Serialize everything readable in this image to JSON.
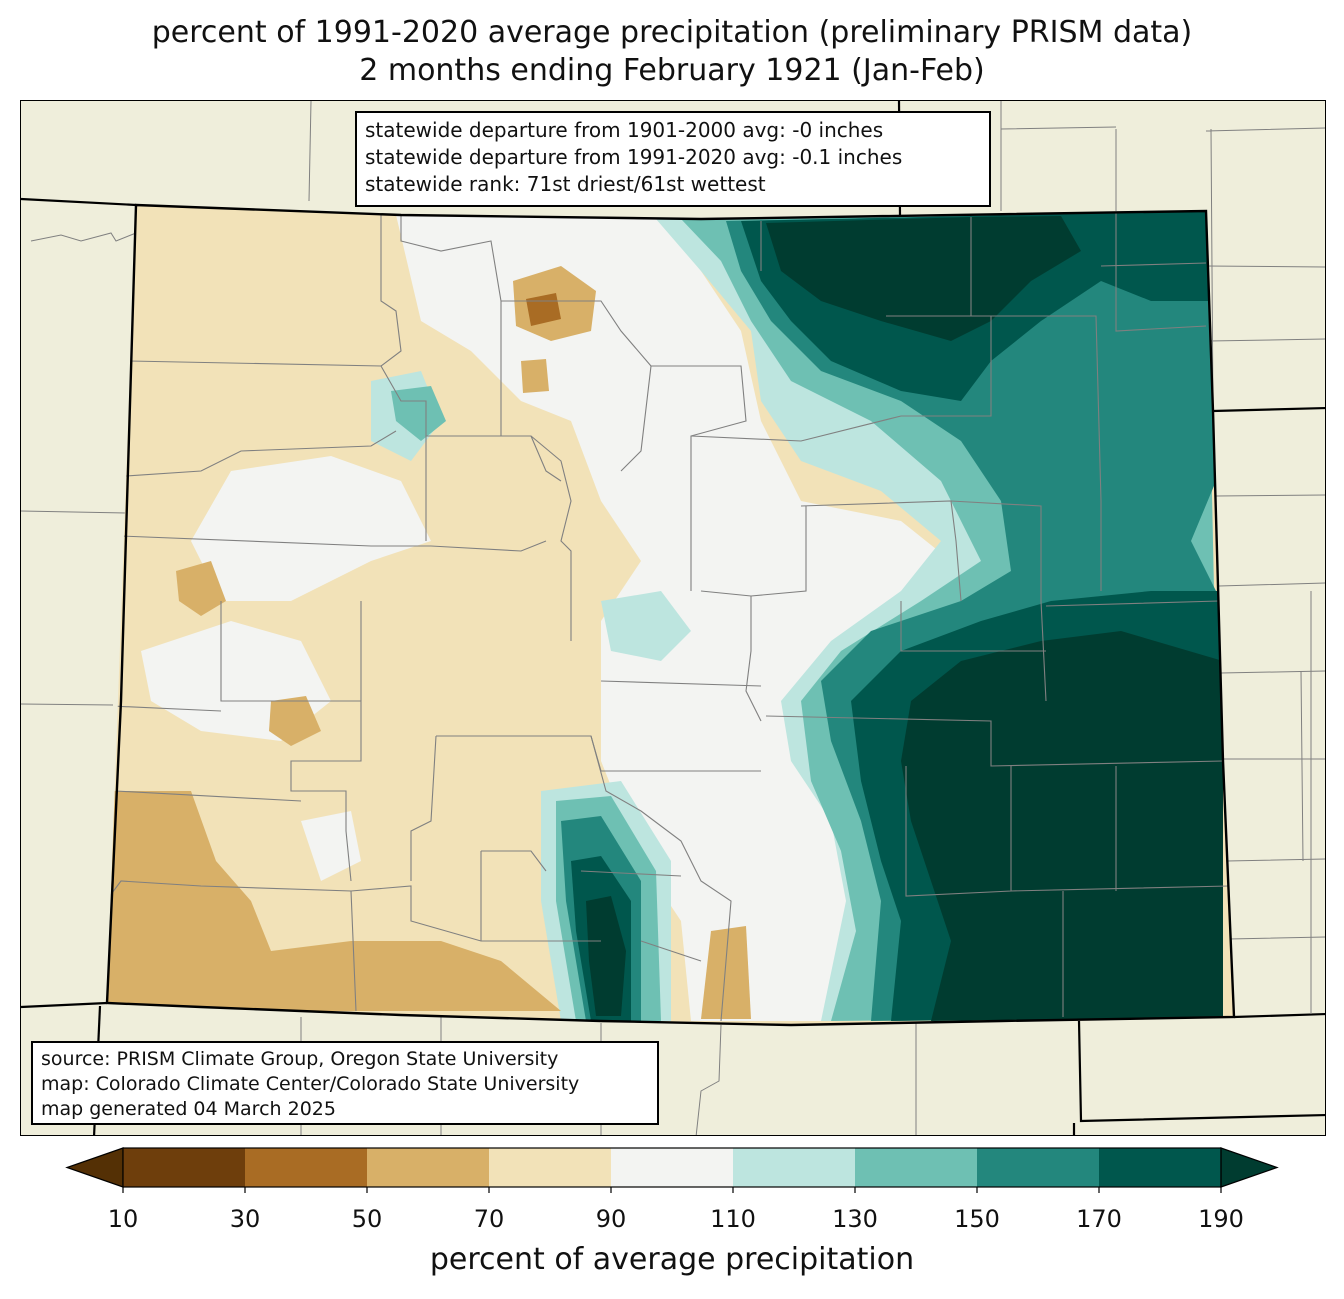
{
  "title": {
    "line1": "percent of 1991-2020 average precipitation (preliminary PRISM data)",
    "line2": "2 months ending February 1921 (Jan-Feb)"
  },
  "stats": {
    "line1": "statewide departure from 1901-2000 avg: -0 inches",
    "line2": "statewide departure from 1991-2020 avg: -0.1 inches",
    "line3": "statewide rank: 71st driest/61st wettest"
  },
  "source": {
    "line1": "source: PRISM Climate Group, Oregon State University",
    "line2": "map: Colorado Climate Center/Colorado State University",
    "line3": "map generated 04 March 2025"
  },
  "colorbar": {
    "label": "percent of average precipitation",
    "ticks": [
      "10",
      "30",
      "50",
      "70",
      "90",
      "110",
      "130",
      "150",
      "170",
      "190"
    ],
    "colors": [
      "#6e3e0c",
      "#a96c24",
      "#d8b068",
      "#f2e2b8",
      "#f3f4f2",
      "#bde5df",
      "#6ec0b3",
      "#23877d",
      "#00574d"
    ],
    "under_color": "#543005",
    "over_color": "#003c30"
  },
  "colors": {
    "land": "#efeedb",
    "county_lines": "#808080",
    "state_lines": "#000000"
  }
}
